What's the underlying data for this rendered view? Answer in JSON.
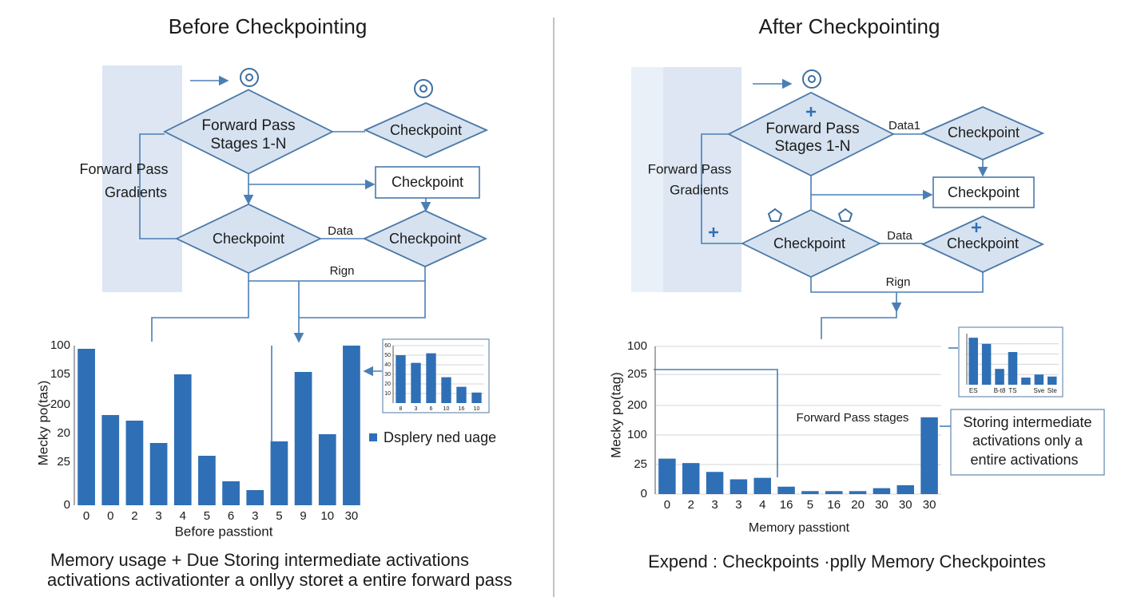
{
  "left": {
    "title": "Before Checkpointing",
    "forward_pass": [
      "Forward Pass",
      "Stages 1-N"
    ],
    "checkpoints": [
      "Checkpoint",
      "Checkpoint",
      "Checkpoint",
      "Checkpoint"
    ],
    "edge_labels": [
      "Data",
      "Rign"
    ],
    "side_label": [
      "Forward Pass",
      "Gradients"
    ],
    "chart": {
      "type": "bar",
      "y_label": "Mecky po(tas)",
      "x_label": "Before passtiont",
      "categories": [
        "0",
        "0",
        "2",
        "3",
        "4",
        "5",
        "6",
        "3",
        "5",
        "9",
        "10",
        "30"
      ],
      "values": [
        98,
        56.5,
        53,
        39,
        82,
        31,
        15,
        9.5,
        40,
        83.5,
        44.5,
        100
      ],
      "color": "#2f6fb5",
      "ylim": [
        0,
        100
      ],
      "yticks": [
        0,
        {
          "value": 27,
          "label": "25"
        },
        {
          "value": 45,
          "label": "20"
        },
        {
          "value": 63,
          "label": "200"
        },
        {
          "value": 82,
          "label": "105"
        },
        100
      ],
      "grid": false
    },
    "inset": {
      "type": "bar",
      "categories": [
        "8",
        "3",
        "6",
        "10",
        "16",
        "10"
      ],
      "values": [
        50,
        42,
        52,
        27,
        17,
        11
      ],
      "color": "#2f6fb5",
      "ylim": [
        0,
        60
      ],
      "yticks": [
        10,
        20,
        30,
        40,
        50,
        60
      ],
      "grid": true
    },
    "legend": "Dsplery ned uage",
    "caption": [
      "Memory usage + Due Storing intermediate activations",
      "activations activationter a onllyy storeŧ a entire forward pass"
    ]
  },
  "right": {
    "title": "After Checkpointing",
    "forward_pass": [
      "Forward Pass",
      "Stages 1-N"
    ],
    "checkpoints": [
      "Checkpoint",
      "Checkpoint",
      "Checkpoint",
      "Checkpoint"
    ],
    "edge_labels": [
      "Data1",
      "Data",
      "Rign"
    ],
    "side_label": [
      "Forward Pass",
      "Gradients"
    ],
    "chart": {
      "type": "bar",
      "y_label": "Mecky po(tag)",
      "x_label": "Memory passtiont",
      "annotation": "Forward Pass stages",
      "categories": [
        "0",
        "2",
        "3",
        "3",
        "4",
        "16",
        "5",
        "16",
        "20",
        "30",
        "30",
        "30"
      ],
      "values": [
        24,
        21,
        15,
        10,
        11,
        5,
        2,
        2,
        2,
        4,
        6,
        52
      ],
      "color": "#2f6fb5",
      "ylim": [
        0,
        100
      ],
      "yticks": [
        0,
        {
          "value": 20,
          "label": "25"
        },
        {
          "value": 40,
          "label": "100"
        },
        {
          "value": 60,
          "label": "200"
        },
        {
          "value": 81,
          "label": "205"
        },
        100
      ],
      "grid": true
    },
    "inset": {
      "type": "bar",
      "categories": [
        "ES",
        null,
        "B-t8",
        "TS",
        null,
        "Sve",
        "Ste"
      ],
      "values": [
        92,
        80,
        31,
        64,
        14,
        20,
        16
      ],
      "color": "#2f6fb5",
      "ylim": [
        0,
        100
      ],
      "grid": true
    },
    "callout": [
      "Storing intermediate",
      "activations only a",
      "entire activations"
    ],
    "caption": [
      "Expend : Checkpoints ·pplly Memory Checkpointes"
    ]
  }
}
